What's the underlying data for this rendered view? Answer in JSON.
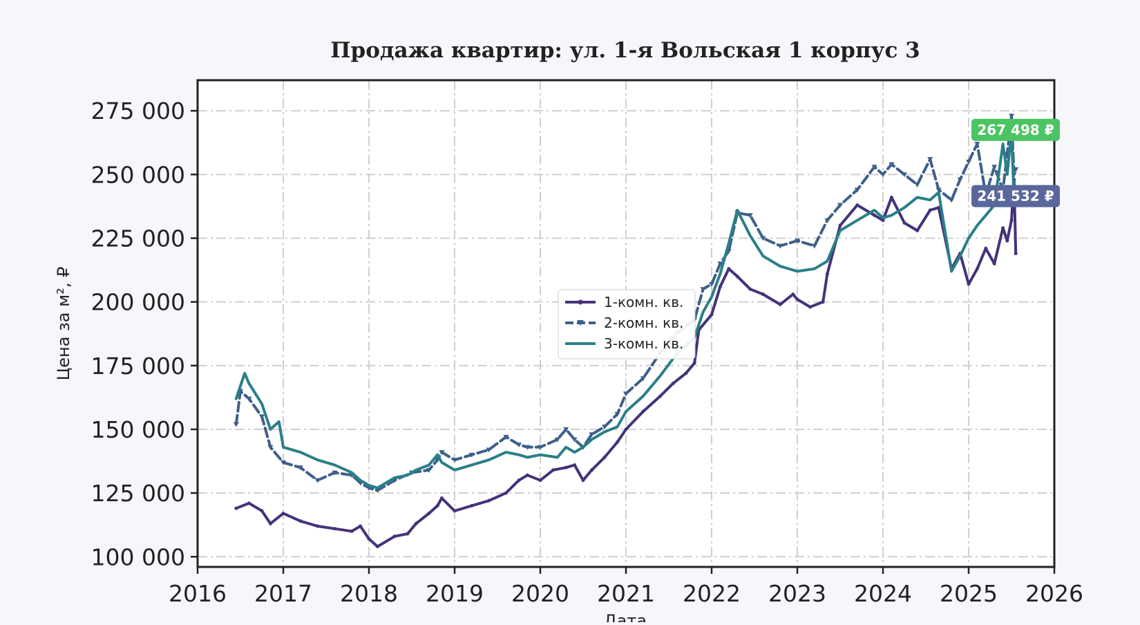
{
  "chart_data": {
    "type": "line",
    "title": "Продажа квартир: ул. 1-я Вольская 1 корпус 3",
    "xlabel": "Дата",
    "ylabel": "Цена за м², ₽",
    "xlim": [
      2016,
      2026
    ],
    "ylim": [
      96000,
      287000
    ],
    "x_ticks": [
      "2016",
      "2017",
      "2018",
      "2019",
      "2020",
      "2021",
      "2022",
      "2023",
      "2024",
      "2025",
      "2026"
    ],
    "y_ticks": [
      "100 000",
      "125 000",
      "150 000",
      "175 000",
      "200 000",
      "225 000",
      "250 000",
      "275 000"
    ],
    "y_tick_values": [
      100000,
      125000,
      150000,
      175000,
      200000,
      225000,
      250000,
      275000
    ],
    "grid": true,
    "legend_position": "center",
    "series": [
      {
        "name": "1-комн. кв.",
        "color": "#45327a",
        "dash": "solid",
        "marker": "dot",
        "x": [
          "2016.45",
          "2016.6",
          "2016.75",
          "2016.85",
          "2017.0",
          "2017.2",
          "2017.4",
          "2017.6",
          "2017.8",
          "2017.9",
          "2018.0",
          "2018.1",
          "2018.3",
          "2018.45",
          "2018.55",
          "2018.7",
          "2018.8",
          "2018.85",
          "2019.0",
          "2019.2",
          "2019.4",
          "2019.6",
          "2019.75",
          "2019.85",
          "2020.0",
          "2020.15",
          "2020.3",
          "2020.4",
          "2020.5",
          "2020.6",
          "2020.75",
          "2020.9",
          "2021.0",
          "2021.2",
          "2021.4",
          "2021.55",
          "2021.7",
          "2021.8",
          "2021.85",
          "2022.0",
          "2022.1",
          "2022.2",
          "2022.3",
          "2022.45",
          "2022.6",
          "2022.8",
          "2022.95",
          "2023.0",
          "2023.15",
          "2023.3",
          "2023.35",
          "2023.5",
          "2023.7",
          "2023.9",
          "2024.0",
          "2024.1",
          "2024.25",
          "2024.4",
          "2024.55",
          "2024.65",
          "2024.8",
          "2024.9",
          "2025.0",
          "2025.1",
          "2025.2",
          "2025.3",
          "2025.4",
          "2025.45",
          "2025.5",
          "2025.53",
          "2025.55"
        ],
        "y": [
          119000,
          121000,
          118000,
          113000,
          117000,
          114000,
          112000,
          111000,
          110000,
          112000,
          107000,
          104000,
          108000,
          109000,
          113000,
          117000,
          120000,
          123000,
          118000,
          120000,
          122000,
          125000,
          130000,
          132000,
          130000,
          134000,
          135000,
          136000,
          130000,
          134000,
          139000,
          145000,
          150000,
          157000,
          163000,
          168000,
          172000,
          176000,
          189000,
          195000,
          206000,
          213000,
          210000,
          205000,
          203000,
          199000,
          203000,
          201000,
          198000,
          200000,
          211000,
          230000,
          238000,
          234000,
          232000,
          241000,
          231000,
          228000,
          236000,
          237000,
          213000,
          219000,
          207000,
          213000,
          221000,
          215000,
          229000,
          224000,
          232000,
          248000,
          219000
        ]
      },
      {
        "name": "2-комн. кв.",
        "color": "#3e5f8a",
        "dash": "dashed",
        "marker": "triangle",
        "x": [
          "2016.45",
          "2016.5",
          "2016.6",
          "2016.75",
          "2016.85",
          "2017.0",
          "2017.2",
          "2017.4",
          "2017.6",
          "2017.8",
          "2017.9",
          "2018.0",
          "2018.1",
          "2018.3",
          "2018.5",
          "2018.7",
          "2018.8",
          "2018.85",
          "2019.0",
          "2019.2",
          "2019.4",
          "2019.6",
          "2019.75",
          "2019.85",
          "2020.0",
          "2020.2",
          "2020.3",
          "2020.4",
          "2020.5",
          "2020.6",
          "2020.75",
          "2020.9",
          "2021.0",
          "2021.2",
          "2021.4",
          "2021.6",
          "2021.8",
          "2021.9",
          "2022.0",
          "2022.1",
          "2022.2",
          "2022.3",
          "2022.45",
          "2022.6",
          "2022.8",
          "2023.0",
          "2023.2",
          "2023.35",
          "2023.5",
          "2023.7",
          "2023.9",
          "2024.0",
          "2024.1",
          "2024.25",
          "2024.4",
          "2024.55",
          "2024.65",
          "2024.8",
          "2024.9",
          "2025.0",
          "2025.1",
          "2025.2",
          "2025.3",
          "2025.4",
          "2025.45",
          "2025.5",
          "2025.53",
          "2025.55"
        ],
        "y": [
          152000,
          165000,
          162000,
          155000,
          143000,
          137000,
          135000,
          130000,
          133000,
          132000,
          129000,
          127000,
          126000,
          130000,
          133000,
          134000,
          138000,
          141000,
          138000,
          140000,
          142000,
          147000,
          144000,
          143000,
          143000,
          146000,
          150000,
          146000,
          143000,
          148000,
          151000,
          156000,
          164000,
          170000,
          180000,
          188000,
          193000,
          205000,
          207000,
          215000,
          220000,
          235000,
          234000,
          225000,
          222000,
          224000,
          222000,
          232000,
          238000,
          244000,
          253000,
          250000,
          254000,
          250000,
          246000,
          256000,
          244000,
          240000,
          248000,
          255000,
          262000,
          242000,
          253000,
          244000,
          258000,
          273000,
          250000,
          252000
        ]
      },
      {
        "name": "3-комн. кв.",
        "color": "#2a7f88",
        "dash": "solid",
        "marker": "none",
        "x": [
          "2016.45",
          "2016.55",
          "2016.6",
          "2016.75",
          "2016.85",
          "2016.95",
          "2017.0",
          "2017.2",
          "2017.4",
          "2017.6",
          "2017.8",
          "2017.9",
          "2018.0",
          "2018.1",
          "2018.3",
          "2018.45",
          "2018.55",
          "2018.7",
          "2018.8",
          "2018.85",
          "2019.0",
          "2019.2",
          "2019.4",
          "2019.6",
          "2019.75",
          "2019.85",
          "2020.0",
          "2020.2",
          "2020.3",
          "2020.4",
          "2020.5",
          "2020.6",
          "2020.75",
          "2020.9",
          "2021.0",
          "2021.2",
          "2021.4",
          "2021.6",
          "2021.8",
          "2021.9",
          "2022.0",
          "2022.1",
          "2022.2",
          "2022.3",
          "2022.45",
          "2022.6",
          "2022.8",
          "2023.0",
          "2023.2",
          "2023.35",
          "2023.5",
          "2023.7",
          "2023.9",
          "2024.0",
          "2024.1",
          "2024.25",
          "2024.4",
          "2024.55",
          "2024.65",
          "2024.8",
          "2024.9",
          "2025.0",
          "2025.1",
          "2025.2",
          "2025.3",
          "2025.4",
          "2025.45",
          "2025.5",
          "2025.53",
          "2025.55"
        ],
        "y": [
          162000,
          172000,
          168000,
          160000,
          150000,
          153000,
          143000,
          141000,
          138000,
          136000,
          133000,
          130000,
          128000,
          127000,
          131000,
          132000,
          134000,
          136000,
          140000,
          137000,
          134000,
          136000,
          138000,
          141000,
          140000,
          139000,
          140000,
          139000,
          143000,
          141000,
          143000,
          146000,
          149000,
          151000,
          157000,
          163000,
          171000,
          180000,
          186000,
          196000,
          202000,
          211000,
          223000,
          236000,
          226000,
          218000,
          214000,
          212000,
          213000,
          216000,
          228000,
          232000,
          236000,
          233000,
          234000,
          237000,
          241000,
          240000,
          243000,
          212000,
          218000,
          225000,
          230000,
          234000,
          238000,
          262000,
          250000,
          267000,
          240000,
          245000
        ]
      }
    ],
    "end_labels": [
      {
        "text": "267 498 ₽",
        "value": 267498,
        "color": "#4cc463"
      },
      {
        "text": "241 532 ₽",
        "value": 241532,
        "color": "#59679c"
      }
    ]
  }
}
